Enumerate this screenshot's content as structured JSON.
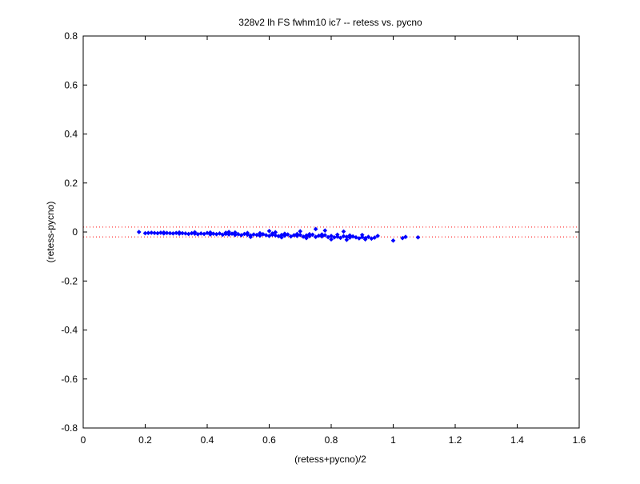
{
  "chart_data": {
    "type": "scatter",
    "title": "328v2 lh FS fwhm10 ic7 -- retess vs. pycno",
    "xlabel": "(retess+pycno)/2",
    "ylabel": "(retess-pycno)",
    "xlim": [
      0,
      1.6
    ],
    "ylim": [
      -0.8,
      0.8
    ],
    "xticks": [
      0,
      0.2,
      0.4,
      0.6,
      0.8,
      1,
      1.2,
      1.4,
      1.6
    ],
    "xtick_labels": [
      "0",
      "0.2",
      "0.4",
      "0.6",
      "0.8",
      "1",
      "1.2",
      "1.4",
      "1.6"
    ],
    "yticks": [
      -0.8,
      -0.6,
      -0.4,
      -0.2,
      0,
      0.2,
      0.4,
      0.6,
      0.8
    ],
    "ytick_labels": [
      "-0.8",
      "-0.6",
      "-0.4",
      "-0.2",
      "0",
      "0.2",
      "0.4",
      "0.6",
      "0.8"
    ],
    "grid": false,
    "reference_lines": [
      {
        "y": 0.02,
        "style": "dotted",
        "color": "#ff0000"
      },
      {
        "y": -0.02,
        "style": "dotted",
        "color": "#ff0000"
      }
    ],
    "series": [
      {
        "marker_color": "#0000ff",
        "points": [
          [
            0.18,
            0.0
          ],
          [
            0.2,
            -0.005
          ],
          [
            0.21,
            -0.004
          ],
          [
            0.22,
            -0.003
          ],
          [
            0.23,
            -0.004
          ],
          [
            0.24,
            -0.005
          ],
          [
            0.25,
            -0.003
          ],
          [
            0.26,
            -0.006
          ],
          [
            0.27,
            -0.004
          ],
          [
            0.28,
            -0.005
          ],
          [
            0.29,
            -0.006
          ],
          [
            0.3,
            -0.004
          ],
          [
            0.31,
            -0.007
          ],
          [
            0.32,
            -0.005
          ],
          [
            0.33,
            -0.006
          ],
          [
            0.34,
            -0.008
          ],
          [
            0.35,
            -0.005
          ],
          [
            0.36,
            -0.007
          ],
          [
            0.37,
            -0.009
          ],
          [
            0.38,
            -0.006
          ],
          [
            0.39,
            -0.008
          ],
          [
            0.4,
            -0.004
          ],
          [
            0.41,
            -0.01
          ],
          [
            0.42,
            -0.007
          ],
          [
            0.43,
            -0.009
          ],
          [
            0.44,
            -0.006
          ],
          [
            0.45,
            -0.011
          ],
          [
            0.46,
            -0.008
          ],
          [
            0.47,
            -0.01
          ],
          [
            0.48,
            -0.007
          ],
          [
            0.49,
            -0.012
          ],
          [
            0.5,
            -0.009
          ],
          [
            0.51,
            -0.013
          ],
          [
            0.52,
            -0.008
          ],
          [
            0.53,
            -0.011
          ],
          [
            0.54,
            -0.014
          ],
          [
            0.55,
            -0.01
          ],
          [
            0.56,
            -0.012
          ],
          [
            0.57,
            -0.015
          ],
          [
            0.58,
            -0.009
          ],
          [
            0.59,
            -0.013
          ],
          [
            0.6,
            -0.016
          ],
          [
            0.61,
            -0.011
          ],
          [
            0.62,
            -0.014
          ],
          [
            0.63,
            -0.017
          ],
          [
            0.64,
            -0.012
          ],
          [
            0.65,
            -0.015
          ],
          [
            0.66,
            -0.01
          ],
          [
            0.67,
            -0.018
          ],
          [
            0.68,
            -0.013
          ],
          [
            0.69,
            -0.016
          ],
          [
            0.7,
            -0.012
          ],
          [
            0.71,
            -0.019
          ],
          [
            0.72,
            -0.014
          ],
          [
            0.73,
            -0.017
          ],
          [
            0.74,
            -0.011
          ],
          [
            0.75,
            -0.02
          ],
          [
            0.76,
            -0.015
          ],
          [
            0.77,
            -0.018
          ],
          [
            0.78,
            -0.013
          ],
          [
            0.79,
            -0.021
          ],
          [
            0.8,
            -0.016
          ],
          [
            0.81,
            -0.022
          ],
          [
            0.82,
            -0.019
          ],
          [
            0.83,
            -0.024
          ],
          [
            0.84,
            -0.017
          ],
          [
            0.85,
            -0.02
          ],
          [
            0.86,
            -0.023
          ],
          [
            0.87,
            -0.018
          ],
          [
            0.88,
            -0.022
          ],
          [
            0.89,
            -0.026
          ],
          [
            0.9,
            -0.021
          ],
          [
            0.91,
            -0.025
          ],
          [
            0.92,
            -0.02
          ],
          [
            0.93,
            -0.027
          ],
          [
            0.94,
            -0.023
          ],
          [
            0.26,
            -0.002
          ],
          [
            0.31,
            -0.002
          ],
          [
            0.36,
            -0.001
          ],
          [
            0.41,
            -0.002
          ],
          [
            0.46,
            -0.003
          ],
          [
            0.49,
            -0.002
          ],
          [
            0.53,
            -0.004
          ],
          [
            0.57,
            -0.005
          ],
          [
            0.61,
            -0.006
          ],
          [
            0.65,
            -0.007
          ],
          [
            0.69,
            -0.008
          ],
          [
            0.73,
            -0.009
          ],
          [
            0.77,
            -0.01
          ],
          [
            0.82,
            -0.011
          ],
          [
            0.6,
            0.004
          ],
          [
            0.7,
            0.003
          ],
          [
            0.75,
            0.012
          ],
          [
            0.78,
            0.006
          ],
          [
            0.84,
            0.002
          ],
          [
            0.54,
            -0.02
          ],
          [
            0.64,
            -0.022
          ],
          [
            0.72,
            -0.025
          ],
          [
            0.8,
            -0.03
          ],
          [
            0.85,
            -0.032
          ],
          [
            0.91,
            -0.03
          ],
          [
            0.47,
            0.0
          ],
          [
            0.62,
            -0.001
          ],
          [
            0.86,
            -0.014
          ],
          [
            0.9,
            -0.012
          ],
          [
            0.95,
            -0.016
          ],
          [
            1.0,
            -0.035
          ],
          [
            1.03,
            -0.025
          ],
          [
            1.04,
            -0.02
          ],
          [
            1.08,
            -0.022
          ]
        ]
      }
    ]
  }
}
